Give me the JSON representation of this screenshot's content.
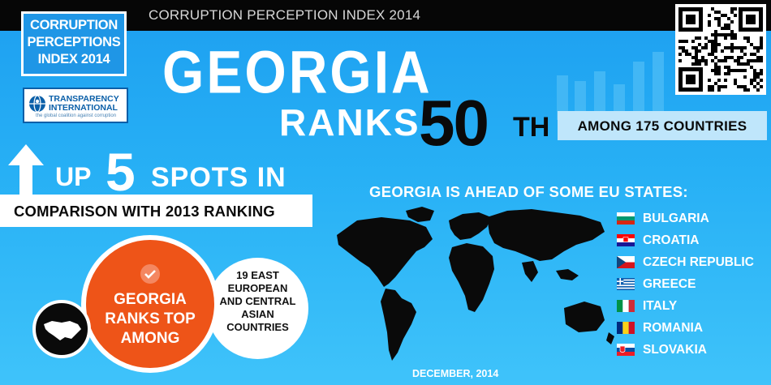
{
  "header": {
    "title": "CORRUPTION PERCEPTION INDEX 2014"
  },
  "badges": {
    "cpi": {
      "line1": "CORRUPTION",
      "line2": "PERCEPTIONS",
      "line3": "INDEX 2014"
    },
    "ti": {
      "name_line1": "TRANSPARENCY",
      "name_line2": "INTERNATIONAL",
      "tagline": "the global coalition against corruption"
    }
  },
  "headline": {
    "country": "GEORGIA",
    "ranks": "RANKS",
    "rank_number": "50",
    "rank_suffix": "TH",
    "among": "AMONG 175 COUNTRIES"
  },
  "improvement": {
    "prefix": "UP",
    "number": "5",
    "suffix": "SPOTS IN",
    "comparison": "COMPARISON WITH 2013 RANKING"
  },
  "eu": {
    "heading": "GEORGIA IS AHEAD OF SOME EU STATES:",
    "countries": [
      "BULGARIA",
      "CROATIA",
      "CZECH REPUBLIC",
      "GREECE",
      "ITALY",
      "ROMANIA",
      "SLOVAKIA"
    ]
  },
  "regional": {
    "main_line1": "GEORGIA",
    "main_line2": "RANKS TOP",
    "main_line3": "AMONG",
    "sub_line1": "19 EAST",
    "sub_line2": "EUROPEAN",
    "sub_line3": "AND CENTRAL",
    "sub_line4": "ASIAN",
    "sub_line5": "COUNTRIES"
  },
  "footer": {
    "date": "DECEMBER, 2014"
  },
  "icons": [
    "up-arrow-icon",
    "check-icon",
    "globe-icon",
    "qr-code-icon",
    "world-map-icon",
    "georgia-map-icon"
  ],
  "colors": {
    "accent_orange": "#ee5418",
    "background_blue": "#27b0f5",
    "dark": "#060606"
  }
}
